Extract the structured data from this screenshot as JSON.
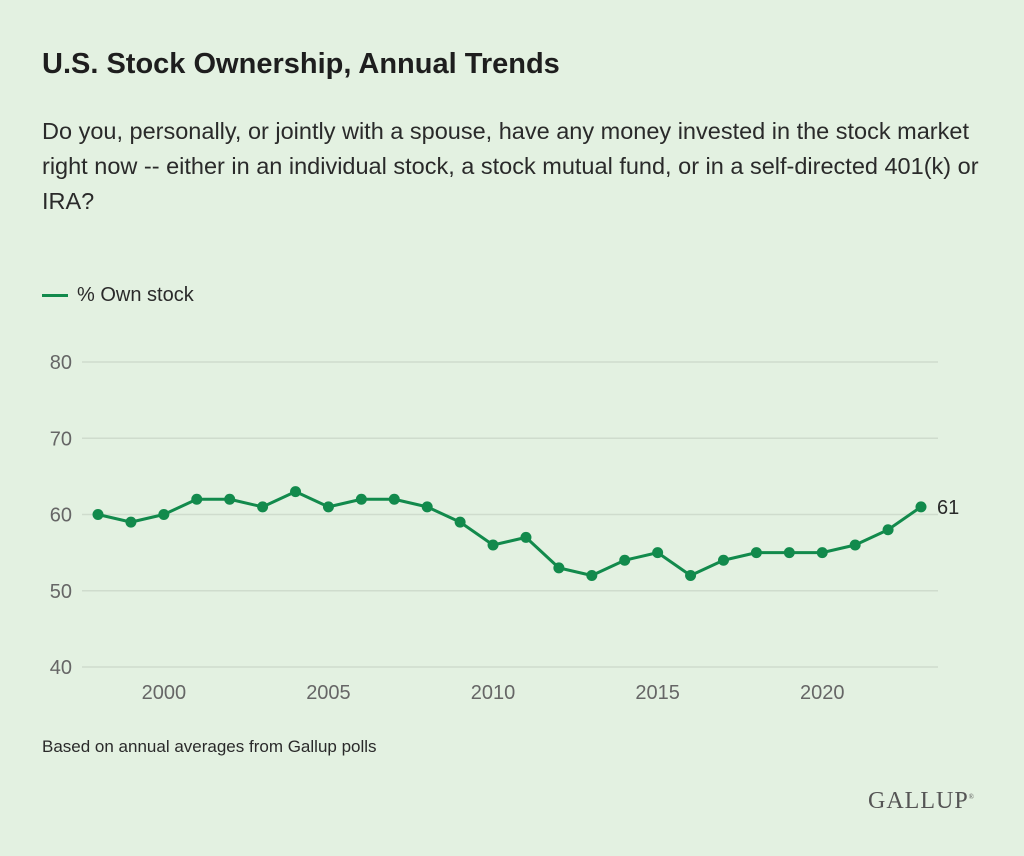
{
  "title": "U.S. Stock Ownership, Annual Trends",
  "subtitle": "Do you, personally, or jointly with a spouse, have any money invested in the stock market right now -- either in an individual stock, a stock mutual fund, or in a self-directed 401(k) or IRA?",
  "note": "Based on annual averages from Gallup polls",
  "logo": "GALLUP",
  "colors": {
    "line": "#128a4c",
    "background": "#e3f1e1",
    "grid": "#cfdccd"
  },
  "chart_data": {
    "type": "line",
    "title": "U.S. Stock Ownership, Annual Trends",
    "xlabel": "",
    "ylabel": "",
    "ylim": [
      40,
      80
    ],
    "xlim": [
      1998,
      2023
    ],
    "yticks": [
      40,
      50,
      60,
      70,
      80
    ],
    "xticks": [
      2000,
      2005,
      2010,
      2015,
      2020
    ],
    "grid": true,
    "legend_position": "top-left",
    "x": [
      1998,
      1999,
      2000,
      2001,
      2002,
      2003,
      2004,
      2005,
      2006,
      2007,
      2008,
      2009,
      2010,
      2011,
      2012,
      2013,
      2014,
      2015,
      2016,
      2017,
      2018,
      2019,
      2020,
      2021,
      2022,
      2023
    ],
    "series": [
      {
        "name": "% Own stock",
        "values": [
          60,
          59,
          60,
          62,
          62,
          61,
          63,
          61,
          62,
          62,
          61,
          59,
          56,
          57,
          53,
          52,
          54,
          55,
          52,
          54,
          55,
          55,
          55,
          56,
          58,
          61
        ],
        "end_label": "61"
      }
    ]
  }
}
